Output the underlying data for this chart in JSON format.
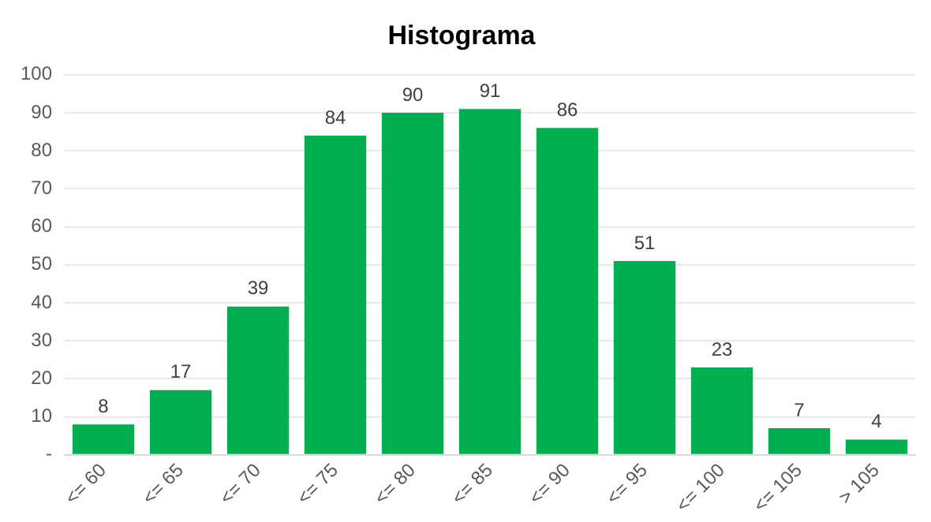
{
  "chart_data": {
    "type": "bar",
    "title": "Histograma",
    "categories": [
      "<= 60",
      "<= 65",
      "<= 70",
      "<= 75",
      "<= 80",
      "<= 85",
      "<= 90",
      "<= 95",
      "<= 100",
      "<= 105",
      "> 105"
    ],
    "values": [
      8,
      17,
      39,
      84,
      90,
      91,
      86,
      51,
      23,
      7,
      4
    ],
    "color": "#00b050",
    "ylim": [
      0,
      100
    ],
    "yticks": [
      {
        "value": 0,
        "label": "-"
      },
      10,
      20,
      30,
      40,
      50,
      60,
      70,
      80,
      90,
      100
    ],
    "grid": "y",
    "data_labels": true
  }
}
